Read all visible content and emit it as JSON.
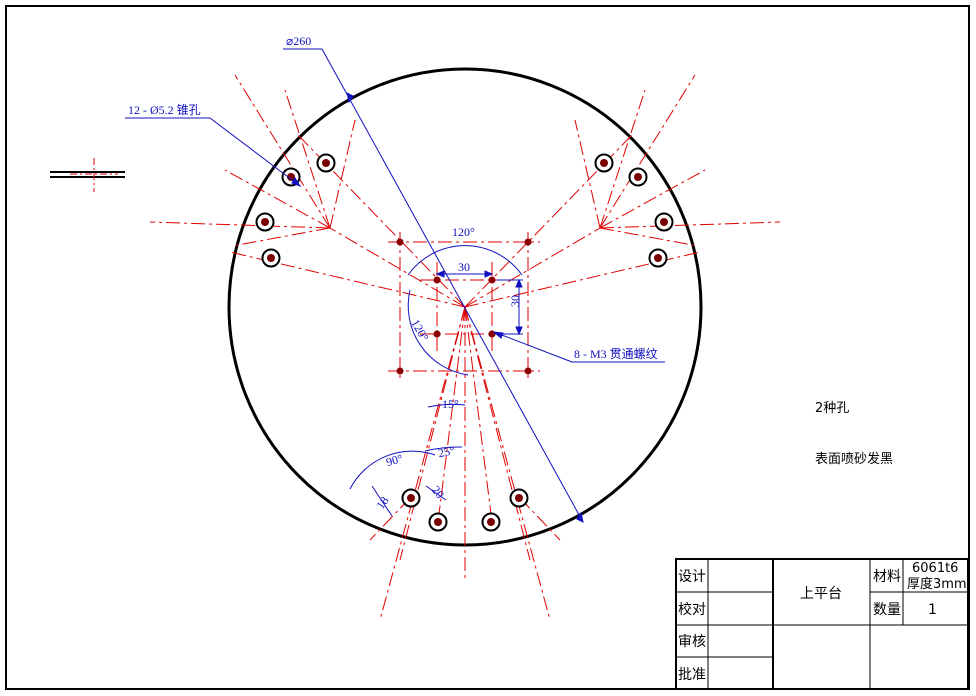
{
  "dimensions": {
    "diameter": "⌀260",
    "countersink_holes": "12 - Ø5.2 锥孔",
    "thread_holes": "8 - M3 贯通螺纹",
    "angle_120_top": "120°",
    "angle_120_left": "120°",
    "width_30": "30",
    "height_30": "30",
    "angle_15": "15°",
    "angle_25": "25°",
    "angle_90": "90°",
    "len_18": "18",
    "len_20": "20"
  },
  "notes": {
    "hole_types": "2种孔",
    "surface": "表面喷砂发黑"
  },
  "title_block": {
    "design": "设计",
    "check": "校对",
    "review": "审核",
    "approve": "批准",
    "part_name": "上平台",
    "material_label": "材料",
    "material_line1": "6061t6",
    "material_line2": "厚度3mm",
    "quantity_label": "数量",
    "quantity_value": "1"
  },
  "colors": {
    "outline": "#000000",
    "centerline": "#e00000",
    "dimension": "#1010c0"
  }
}
